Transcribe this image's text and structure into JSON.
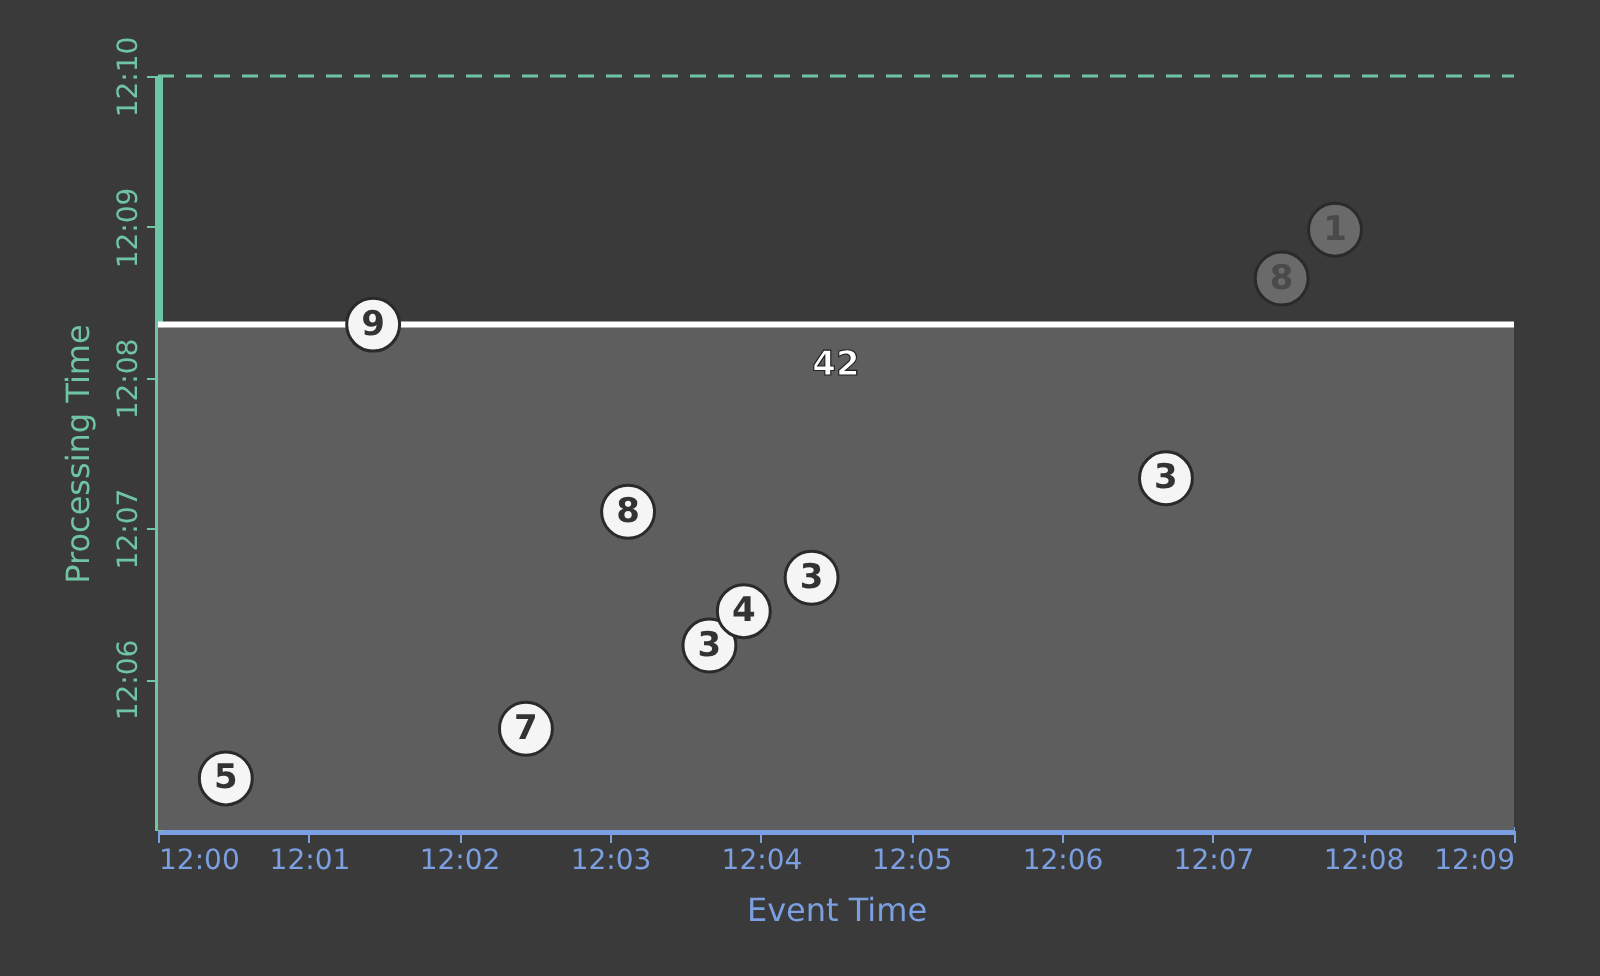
{
  "chart_data": {
    "type": "scatter",
    "xlabel": "Event Time",
    "ylabel": "Processing Time",
    "xlim": [
      12.0,
      12.15
    ],
    "ylim": [
      12.0833,
      12.1667
    ],
    "xticks": [
      {
        "value": 12.0,
        "label": "12:00"
      },
      {
        "value": 12.0167,
        "label": "12:01"
      },
      {
        "value": 12.0333,
        "label": "12:02"
      },
      {
        "value": 12.05,
        "label": "12:03"
      },
      {
        "value": 12.0667,
        "label": "12:04"
      },
      {
        "value": 12.0833,
        "label": "12:05"
      },
      {
        "value": 12.1,
        "label": "12:06"
      },
      {
        "value": 12.1167,
        "label": "12:07"
      },
      {
        "value": 12.1333,
        "label": "12:08"
      },
      {
        "value": 12.15,
        "label": "12:09"
      }
    ],
    "yticks": [
      {
        "value": 12.1,
        "label": "12:06"
      },
      {
        "value": 12.1167,
        "label": "12:07"
      },
      {
        "value": 12.1333,
        "label": "12:08"
      },
      {
        "value": 12.15,
        "label": "12:09"
      },
      {
        "value": 12.1667,
        "label": "12:10"
      }
    ],
    "grid": false,
    "marker": "circle",
    "series": [
      {
        "color": "#f5f5f5",
        "x": [
          12.0075,
          12.0407,
          12.052,
          12.061,
          12.0648,
          12.0723,
          12.1115,
          12.0238
        ],
        "values": [
          12.089,
          12.0945,
          12.1185,
          12.1037,
          12.1075,
          12.1112,
          12.1222,
          12.1392
        ]
      },
      {
        "color": "#6a6a6a",
        "x": [
          12.1243,
          12.1302
        ],
        "values": [
          12.1443,
          12.1497
        ]
      }
    ],
    "bands": [
      {
        "axis": "y",
        "from": 12.0833,
        "to": 12.1392,
        "color": "#5e5e5e"
      }
    ],
    "ref_lines": [
      {
        "axis": "y",
        "value": 12.1392,
        "color": "#ffffff",
        "line_style": "solid"
      },
      {
        "axis": "y",
        "value": 12.1667,
        "color": "#6fc4a3",
        "line_style": "dashed"
      }
    ],
    "annotations": [
      {
        "text": "5",
        "x": 12.0075,
        "y": 12.089
      },
      {
        "text": "7",
        "x": 12.0407,
        "y": 12.0945
      },
      {
        "text": "8",
        "x": 12.052,
        "y": 12.1185
      },
      {
        "text": "3",
        "x": 12.061,
        "y": 12.1037
      },
      {
        "text": "4",
        "x": 12.0648,
        "y": 12.1075
      },
      {
        "text": "3",
        "x": 12.0723,
        "y": 12.1112
      },
      {
        "text": "3",
        "x": 12.1115,
        "y": 12.1222
      },
      {
        "text": "9",
        "x": 12.0238,
        "y": 12.1392
      },
      {
        "text": "8",
        "x": 12.1243,
        "y": 12.1443
      },
      {
        "text": "1",
        "x": 12.1302,
        "y": 12.1497
      },
      "42"
    ]
  }
}
